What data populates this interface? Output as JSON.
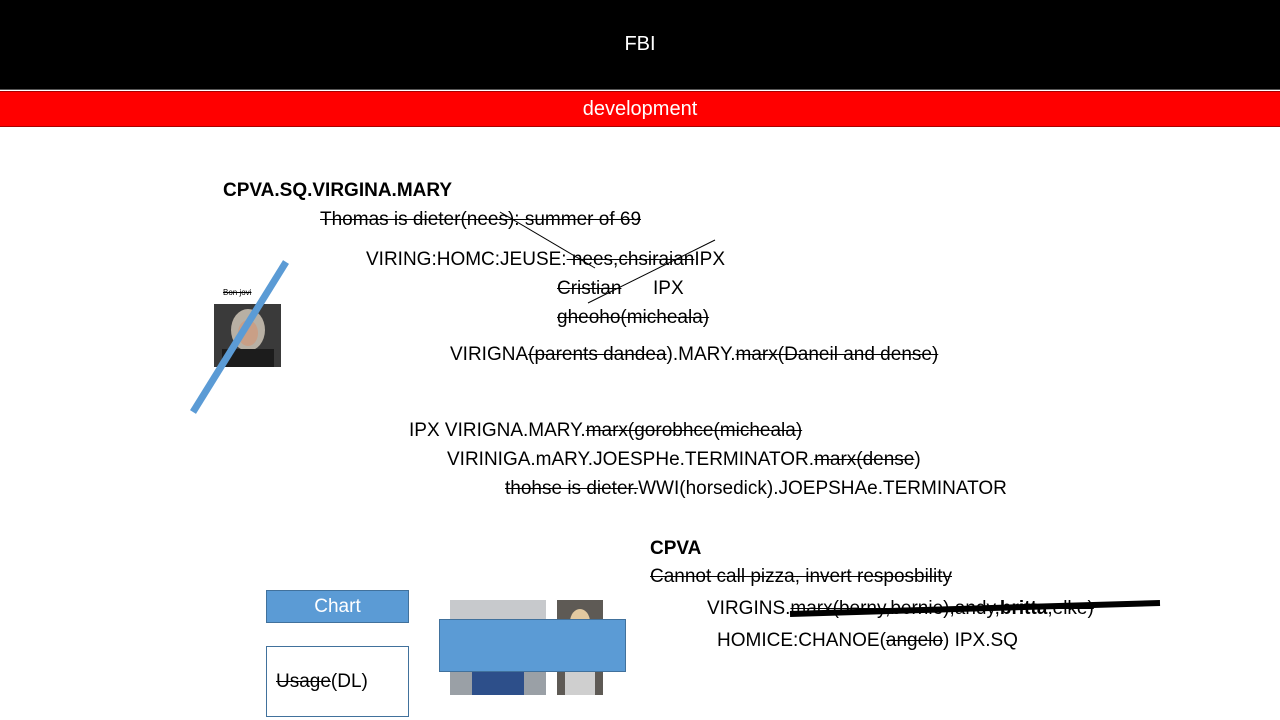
{
  "header": {
    "title": "FBI",
    "subtitle": "development"
  },
  "section1": {
    "heading": "CPVA.SQ.VIRGINA.MARY",
    "line1_struck": " Thomas is dieter(nees): summer of 69",
    "line2_prefix": "VIRING:HOMC:JEUSE:",
    "line2_struck": " nees,chsiraian",
    "line2_suffix": "IPX",
    "line3_struck": "Cristian",
    "line3_suffix": "IPX",
    "line4_struck": "gheoho(micheala)",
    "line5_prefix": "VIRIGNA",
    "line5_struck": "(parents dandea",
    "line5_mid": ").MARY.",
    "line5_struck2": "marx(Daneil and dense)"
  },
  "image_caption": "Bon jovi",
  "section2": {
    "line1_prefix": "IPX VIRIGNA.MARY.",
    "line1_struck": "marx(gorobhce(micheala)",
    "line2_prefix": "VIRINIGA.mARY.JOESPHe.TERMINATOR.",
    "line2_struck": "marx(dense",
    "line2_suffix": ")",
    "line3_struck": "thohse is dieter.",
    "line3_suffix": "WWI(horsedick).JOEPSHAe.TERMINATOR"
  },
  "section3": {
    "heading": "CPVA",
    "line1_struck": "Cannot call pizza, invert resposbility",
    "line2_prefix": "VIRGINS.",
    "line2_struck": "marx(berny,bernie),andy,",
    "line2_bold": "britta",
    "line2_struck2": ",elke)",
    "line3_prefix": "HOMICE:CHANOE(",
    "line3_struck": "angelo",
    "line3_suffix": ") IPX.SQ"
  },
  "chart_button": {
    "label": "Chart"
  },
  "usage_box": {
    "struck": "Usage",
    "suffix": "(DL)"
  },
  "colors": {
    "header_bg": "#000000",
    "subheader_bg": "#ff0000",
    "accent": "#5b9bd5"
  }
}
